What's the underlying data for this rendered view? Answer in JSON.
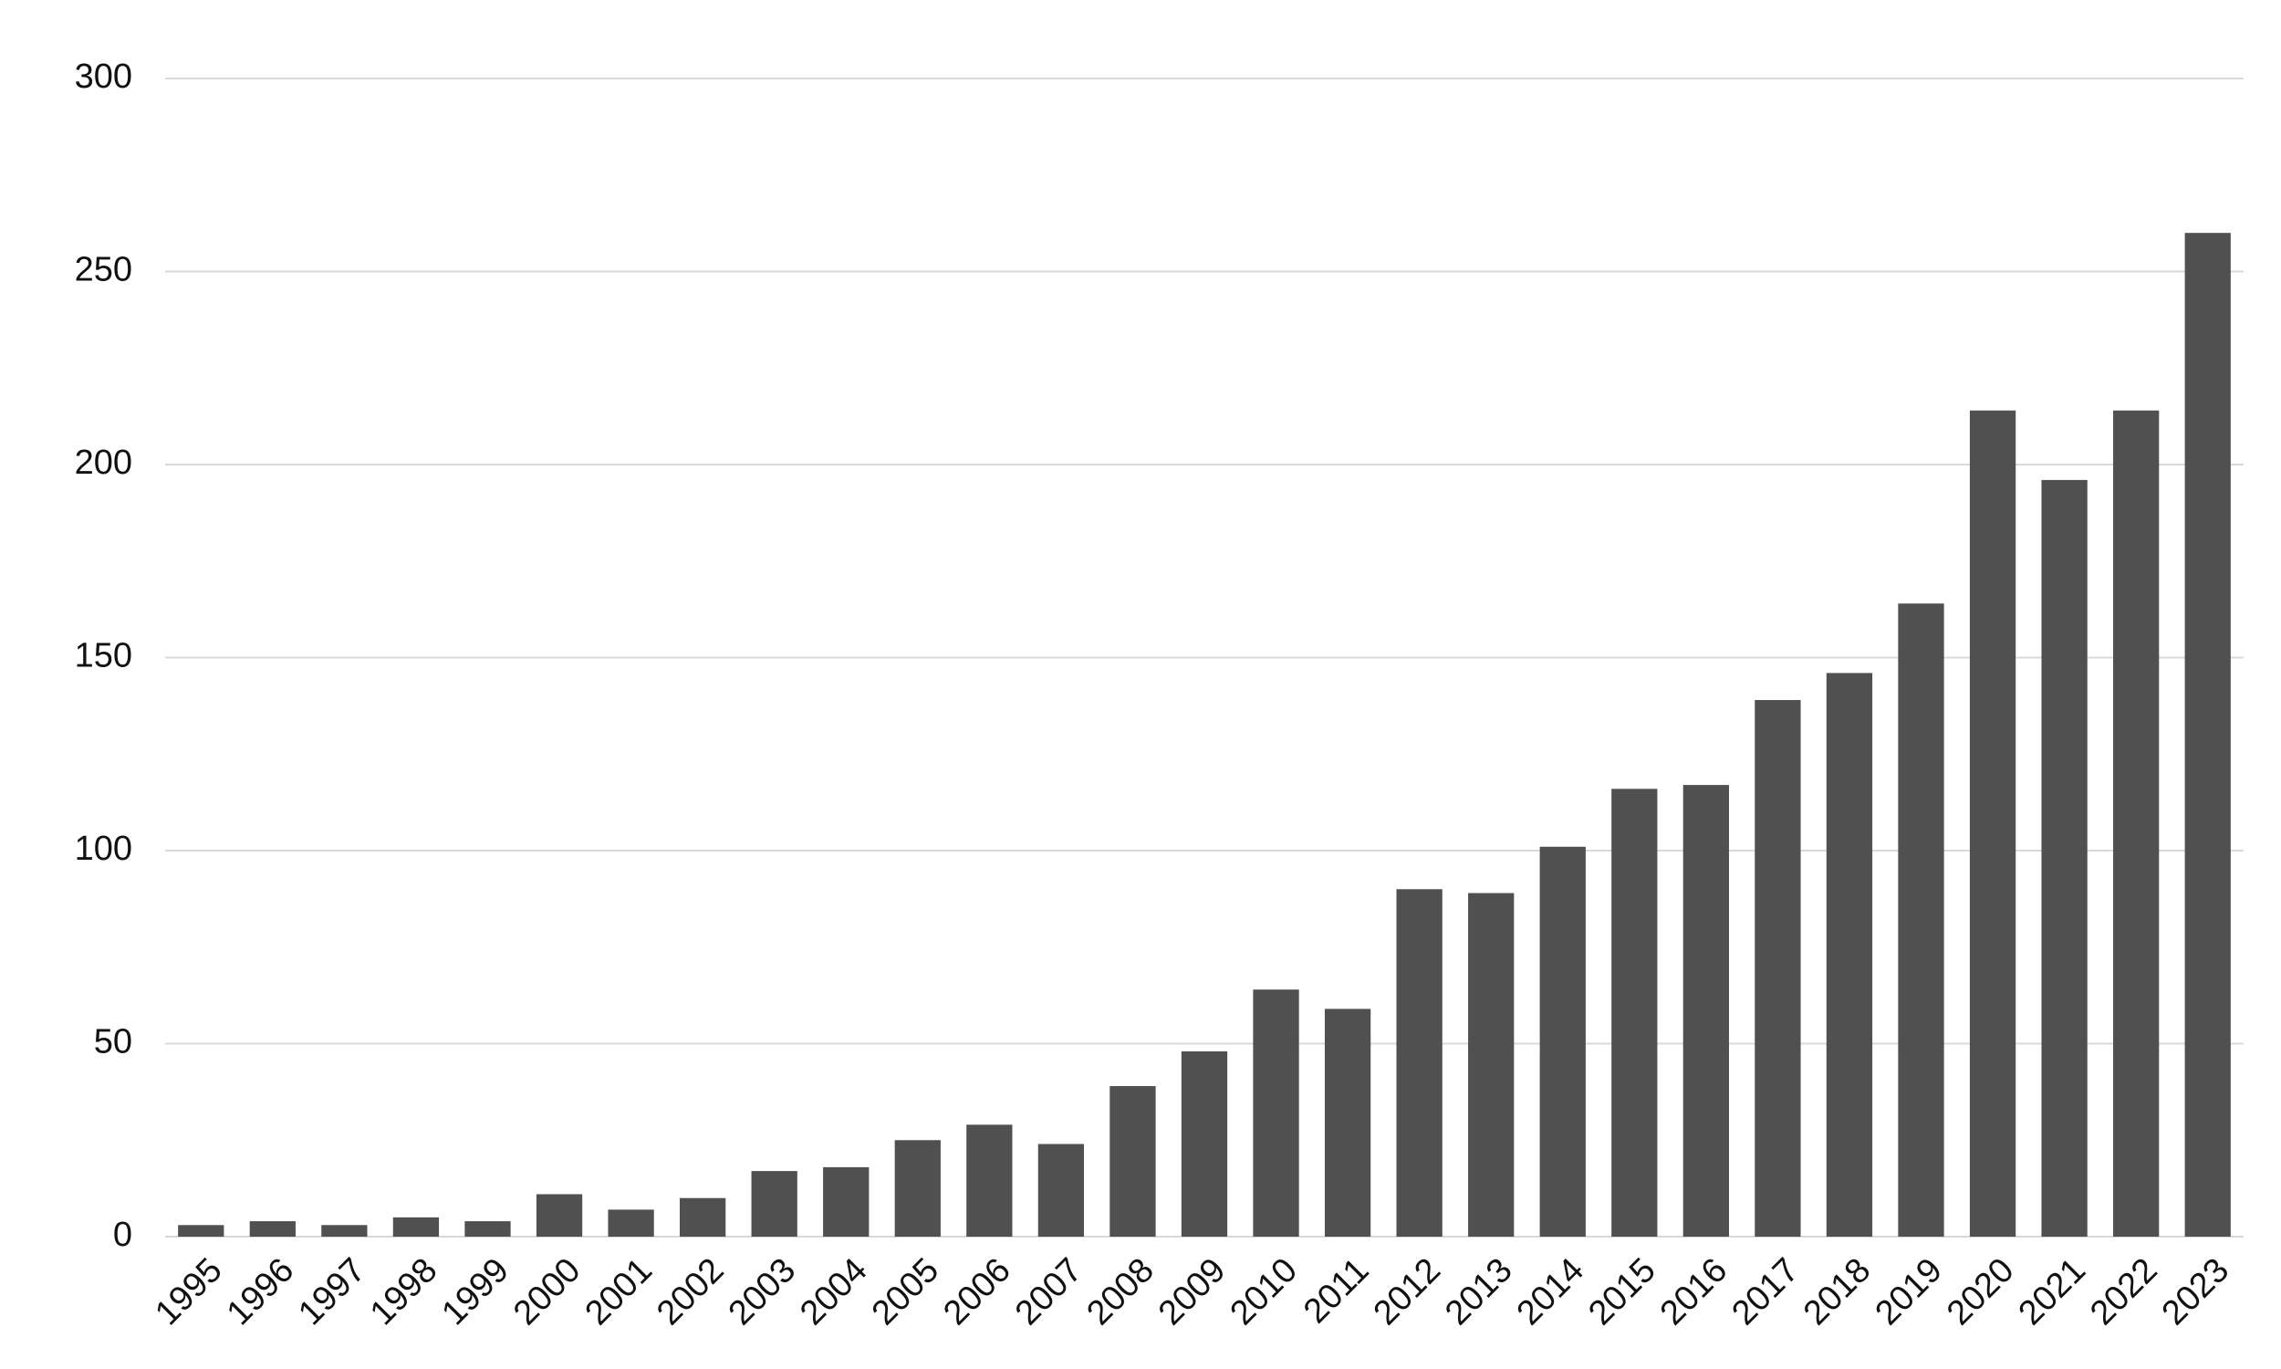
{
  "chart_data": {
    "type": "bar",
    "categories": [
      "1995",
      "1996",
      "1997",
      "1998",
      "1999",
      "2000",
      "2001",
      "2002",
      "2003",
      "2004",
      "2005",
      "2006",
      "2007",
      "2008",
      "2009",
      "2010",
      "2011",
      "2012",
      "2013",
      "2014",
      "2015",
      "2016",
      "2017",
      "2018",
      "2019",
      "2020",
      "2021",
      "2022",
      "2023"
    ],
    "values": [
      3,
      4,
      3,
      5,
      4,
      11,
      7,
      10,
      17,
      18,
      25,
      29,
      24,
      39,
      48,
      64,
      59,
      90,
      89,
      101,
      116,
      117,
      139,
      146,
      164,
      214,
      196,
      214,
      260
    ],
    "color": "#505050",
    "ylim": [
      0,
      300
    ],
    "yticks": [
      0,
      50,
      100,
      150,
      200,
      250,
      300
    ],
    "grid": true
  }
}
